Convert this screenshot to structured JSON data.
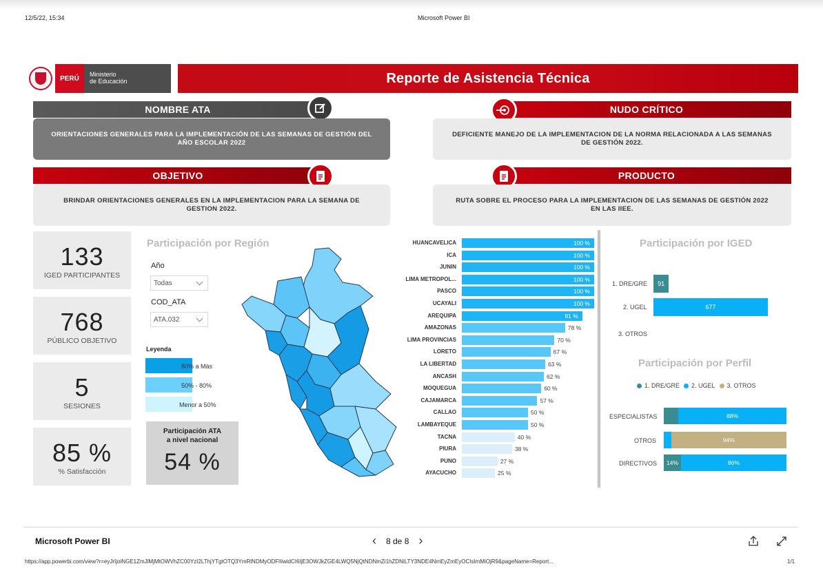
{
  "print_header": {
    "datetime": "12/5/22, 15:34",
    "app_title": "Microsoft Power BI"
  },
  "logo": {
    "country": "PERÚ",
    "ministry_line1": "Ministerio",
    "ministry_line2": "de Educación"
  },
  "report_title": "Reporte de Asistencia Técnica",
  "sections": {
    "nombre_ata": {
      "header": "NOMBRE ATA",
      "text": "ORIENTACIONES GENERALES PARA LA IMPLEMENTACIÓN DE LAS SEMANAS DE GESTIÓN DEL AÑO ESCOLAR 2022"
    },
    "nudo_critico": {
      "header": "NUDO CRÍTICO",
      "text": "DEFICIENTE MANEJO DE LA IMPLEMENTACION DE LA NORMA RELACIONADA A LAS SEMANAS DE GESTIÓN 2022."
    },
    "objetivo": {
      "header": "OBJETIVO",
      "text": "BRINDAR ORIENTACIONES GENERALES EN LA IMPLEMENTACION PARA LA SEMANA DE GESTION 2022."
    },
    "producto": {
      "header": "PRODUCTO",
      "text": "RUTA SOBRE EL PROCESO PARA LA IMPLEMENTACION DE LAS SEMANAS DE GESTIÓN 2022 EN LAS IIEE."
    }
  },
  "kpis": [
    {
      "value": "133",
      "label": "IGED PARTICIPANTES"
    },
    {
      "value": "768",
      "label": "PÚBLICO OBJETIVO"
    },
    {
      "value": "5",
      "label": "SESIONES"
    },
    {
      "value": "85 %",
      "label": "% Satisfacción"
    }
  ],
  "region": {
    "title": "Participación por Región",
    "filter_year_label": "Año",
    "filter_year_value": "Todas",
    "filter_ata_label": "COD_ATA",
    "filter_ata_value": "ATA.032",
    "legend_title": "Leyenda",
    "legend": [
      {
        "label": "80% a Más",
        "color": "#0aa0e8"
      },
      {
        "label": "50% - 80%",
        "color": "#6cd0fa"
      },
      {
        "label": "Menor a 50%",
        "color": "#cdf4ff"
      }
    ],
    "national_title_1": "Participación ATA",
    "national_title_2": "a nivel nacional",
    "national_value": "54 %"
  },
  "colors": {
    "bar_high": "#1fb4f5",
    "bar_mid": "#57c7f8",
    "bar_low": "#ddeefb",
    "dre": "#3a8c90",
    "ugel": "#0ab0f5",
    "otros": "#c2af82",
    "red": "#c8000f"
  },
  "chart_data": [
    {
      "type": "bar",
      "orientation": "horizontal",
      "categories": [
        "HUANCAVELICA",
        "ICA",
        "JUNIN",
        "LIMA METROPOL...",
        "PASCO",
        "UCAYALI",
        "AREQUIPA",
        "AMAZONAS",
        "LIMA PROVINCIAS",
        "LORETO",
        "LA LIBERTAD",
        "ANCASH",
        "MOQUEGUA",
        "CAJAMARCA",
        "CALLAO",
        "LAMBAYEQUE",
        "TACNA",
        "PIURA",
        "PUNO",
        "AYACUCHO"
      ],
      "values": [
        100,
        100,
        100,
        100,
        100,
        100,
        91,
        78,
        70,
        67,
        63,
        62,
        60,
        57,
        50,
        50,
        40,
        38,
        27,
        25
      ],
      "value_labels": [
        "100 %",
        "100 %",
        "100 %",
        "100 %",
        "100 %",
        "100 %",
        "91 %",
        "78 %",
        "70 %",
        "67 %",
        "63 %",
        "62 %",
        "60 %",
        "57 %",
        "50 %",
        "50 %",
        "40 %",
        "38 %",
        "27 %",
        "25 %"
      ],
      "xlim": [
        0,
        100
      ]
    },
    {
      "type": "bar",
      "orientation": "horizontal",
      "title": "Participación por IGED",
      "categories": [
        "1. DRE/GRE",
        "2. UGEL",
        "3. OTROS"
      ],
      "values": [
        91,
        677,
        0
      ],
      "value_labels": [
        "91",
        "677",
        ""
      ],
      "xlim": [
        0,
        677
      ]
    },
    {
      "type": "bar",
      "stacked": true,
      "orientation": "horizontal",
      "title": "Participación por Perfil",
      "legend_position": "top",
      "categories": [
        "ESPECIALISTAS",
        "OTROS",
        "DIRECTIVOS"
      ],
      "series": [
        {
          "name": "1. DRE/GRE",
          "values": [
            12,
            0,
            14
          ],
          "labels": [
            "",
            "",
            "14%"
          ]
        },
        {
          "name": "2. UGEL",
          "values": [
            88,
            6,
            86
          ],
          "labels": [
            "88%",
            "",
            "86%"
          ]
        },
        {
          "name": "3. OTROS",
          "values": [
            0,
            94,
            0
          ],
          "labels": [
            "",
            "94%",
            ""
          ]
        }
      ],
      "xlim": [
        0,
        100
      ]
    }
  ],
  "footer": {
    "brand": "Microsoft Power BI",
    "page": "8 de 8",
    "url": "https://app.powerbi.com/view?r=eyJrIjoiNGE1ZmJlMjMtOWVhZC00YzI2LThjYTgtOTQ3YmRlNDMyODFlIiwidCI6IjE3OWJkZGE4LWQ5NjQtNDNmZi1hZDNiLTY3NDE4NmEyZmEyOCIsImMiOjR9&pageName=Report...",
    "page_count": "1/1"
  }
}
